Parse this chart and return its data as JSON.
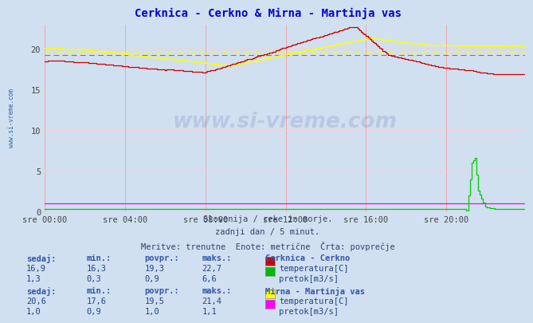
{
  "title": "Cerknica - Cerkno & Mirna - Martinja vas",
  "title_color": "#0000cc",
  "bg_color": "#d0e0f0",
  "plot_bg_color": "#d0e0f0",
  "grid_color_v": "#ff9999",
  "grid_color_h": "#ffcccc",
  "xlabel_ticks": [
    "sre 00:00",
    "sre 04:00",
    "sre 08:00",
    "sre 12:00",
    "sre 16:00",
    "sre 20:00"
  ],
  "ylabel_ticks": [
    0,
    5,
    10,
    15,
    20
  ],
  "ylim": [
    0,
    23
  ],
  "xlim_max": 287,
  "subtitle1": "Slovenija / reke in morje.",
  "subtitle2": "zadnji dan / 5 minut.",
  "subtitle3": "Meritve: trenutne  Enote: metrične  Črta: povprečje",
  "watermark": "www.si-vreme.com",
  "avg_cerknica_temp": 19.3,
  "avg_mirna_temp": 19.5,
  "info_text_color": "#3355aa",
  "info_value_color": "#224488",
  "section1_title": "Cerknica - Cerkno",
  "section1_row1": [
    "16,9",
    "16,3",
    "19,3",
    "22,7"
  ],
  "section1_row1_color": "#cc0000",
  "section1_row1_unit": "temperatura[C]",
  "section1_row2": [
    "1,3",
    "0,3",
    "0,9",
    "6,6"
  ],
  "section1_row2_color": "#00bb00",
  "section1_row2_unit": "pretok[m3/s]",
  "section2_title": "Mirna - Martinja vas",
  "section2_row1": [
    "20,6",
    "17,6",
    "19,5",
    "21,4"
  ],
  "section2_row1_color": "#ffff00",
  "section2_row1_unit": "temperatura[C]",
  "section2_row2": [
    "1,0",
    "0,9",
    "1,0",
    "1,1"
  ],
  "section2_row2_color": "#ff00ff",
  "section2_row2_unit": "pretok[m3/s]",
  "col_headers": [
    "sedaj:",
    "min.:",
    "povpr.:",
    "maks.:"
  ]
}
